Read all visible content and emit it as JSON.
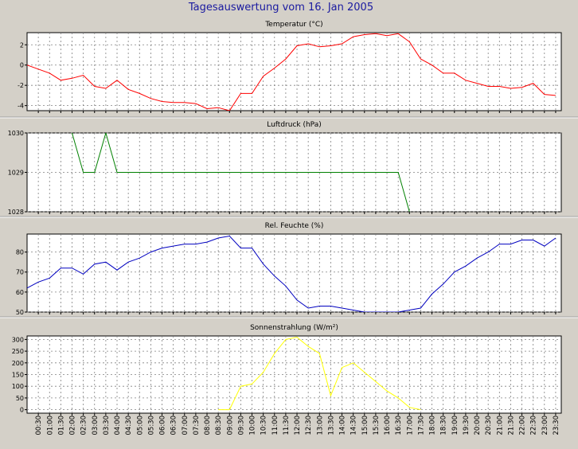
{
  "window_title": "Tagesauswertung vom 16. Jan 2005",
  "x_ticks": [
    "00:30",
    "01:00",
    "01:30",
    "02:00",
    "02:30",
    "03:00",
    "03:30",
    "04:00",
    "04:30",
    "05:00",
    "05:30",
    "06:00",
    "06:30",
    "07:00",
    "07:30",
    "08:00",
    "08:30",
    "09:00",
    "09:30",
    "10:00",
    "10:30",
    "11:00",
    "11:30",
    "12:00",
    "12:30",
    "13:00",
    "13:30",
    "14:00",
    "14:30",
    "15:00",
    "15:30",
    "16:00",
    "16:30",
    "17:00",
    "17:30",
    "18:00",
    "18:30",
    "19:00",
    "19:30",
    "20:00",
    "20:30",
    "21:00",
    "21:30",
    "22:00",
    "22:30",
    "23:00",
    "23:30"
  ],
  "colors": {
    "temperature": "#ff0000",
    "pressure": "#008000",
    "humidity": "#0000c0",
    "radiation": "#ffff00",
    "title": "#1a1aa0",
    "background": "#d4d0c8"
  },
  "chart_data": [
    {
      "type": "line",
      "title": "Temperatur (°C)",
      "ylim": [
        -4.5,
        3.2
      ],
      "yticks": [
        -4,
        -2,
        0,
        2
      ],
      "grid": true,
      "x": [
        0,
        0.5,
        1,
        1.5,
        2,
        2.5,
        3,
        3.5,
        4,
        4.5,
        5,
        5.5,
        6,
        6.5,
        7,
        7.5,
        8,
        8.5,
        9,
        9.5,
        10,
        10.5,
        11,
        11.5,
        12,
        12.5,
        13,
        13.5,
        14,
        14.5,
        15,
        15.5,
        16,
        16.5,
        17,
        17.5,
        18,
        18.5,
        19,
        19.5,
        20,
        20.5,
        21,
        21.5,
        22,
        22.5,
        23,
        23.5
      ],
      "series": [
        {
          "values": [
            0,
            -0.4,
            -0.8,
            -1.5,
            -1.3,
            -1.0,
            -2.1,
            -2.3,
            -1.5,
            -2.4,
            -2.8,
            -3.3,
            -3.6,
            -3.7,
            -3.7,
            -3.8,
            -4.3,
            -4.2,
            -4.5,
            -2.8,
            -2.8,
            -1.1,
            -0.3,
            0.6,
            1.9,
            2.1,
            1.8,
            1.9,
            2.1,
            2.8,
            3.0,
            3.1,
            2.9,
            3.1,
            2.3,
            0.6,
            0.0,
            -0.8,
            -0.8,
            -1.5,
            -1.8,
            -2.1,
            -2.1,
            -2.3,
            -2.2,
            -1.8,
            -2.9,
            -3.0
          ]
        }
      ]
    },
    {
      "type": "line",
      "title": "Luftdruck (hPa)",
      "ylim": [
        1028,
        1030
      ],
      "yticks": [
        1028,
        1029,
        1030
      ],
      "grid": true,
      "x": [
        2,
        2.5,
        3,
        3.5,
        4,
        16.5,
        17
      ],
      "series": [
        {
          "values": [
            1030,
            1029,
            1029,
            1030,
            1029,
            1029,
            1028
          ]
        }
      ]
    },
    {
      "type": "line",
      "title": "Rel. Feuchte (%)",
      "ylim": [
        50,
        89
      ],
      "yticks": [
        50,
        60,
        70,
        80
      ],
      "grid": true,
      "x": [
        0,
        0.5,
        1,
        1.5,
        2,
        2.5,
        3,
        3.5,
        4,
        4.5,
        5,
        5.5,
        6,
        6.5,
        7,
        7.5,
        8,
        8.5,
        9,
        9.5,
        10,
        10.5,
        11,
        11.5,
        12,
        12.5,
        13,
        13.5,
        14,
        14.5,
        15,
        15.5,
        16,
        16.5,
        17,
        17.5,
        18,
        18.5,
        19,
        19.5,
        20,
        20.5,
        21,
        21.5,
        22,
        22.5,
        23,
        23.5
      ],
      "series": [
        {
          "values": [
            62,
            65,
            67,
            72,
            72,
            69,
            74,
            75,
            71,
            75,
            77,
            80,
            82,
            83,
            84,
            84,
            85,
            87,
            88,
            82,
            82,
            74,
            68,
            63,
            56,
            52,
            53,
            53,
            52,
            51,
            50,
            50,
            50,
            50,
            51,
            52,
            59,
            64,
            70,
            73,
            77,
            80,
            84,
            84,
            86,
            86,
            83,
            87
          ]
        }
      ]
    },
    {
      "type": "line",
      "title": "Sonnenstrahlung (W/m²)",
      "ylim": [
        -15,
        315
      ],
      "yticks": [
        0,
        50,
        100,
        150,
        200,
        250,
        300
      ],
      "grid": true,
      "x": [
        0,
        0.5,
        1,
        1.5,
        2,
        2.5,
        3,
        3.5,
        4,
        4.5,
        5,
        5.5,
        6,
        6.5,
        7,
        7.5,
        8,
        8.5,
        9,
        9.5,
        10,
        10.5,
        11,
        11.5,
        12,
        12.5,
        13,
        13.5,
        14,
        14.5,
        15,
        15.5,
        16,
        16.5,
        17,
        17.5,
        18,
        18.5,
        19,
        19.5,
        20,
        20.5,
        21,
        21.5,
        22,
        22.5,
        23,
        23.5
      ],
      "series": [
        {
          "values": [
            null,
            null,
            null,
            null,
            null,
            null,
            null,
            null,
            null,
            null,
            null,
            null,
            null,
            null,
            null,
            null,
            null,
            0,
            0,
            100,
            110,
            160,
            240,
            300,
            310,
            270,
            240,
            60,
            180,
            200,
            160,
            120,
            80,
            50,
            10,
            0,
            null,
            null,
            null,
            null,
            null,
            null,
            null,
            null,
            null,
            null,
            null,
            null
          ]
        }
      ]
    }
  ]
}
